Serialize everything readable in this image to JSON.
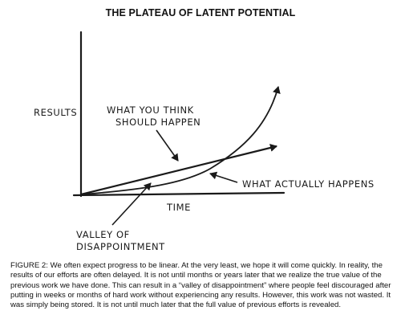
{
  "title": "THE PLATEAU OF LATENT POTENTIAL",
  "diagram": {
    "y_axis_label": "RESULTS",
    "x_axis_label": "TIME",
    "expected_label_line1": "WHAT YOU THINK",
    "expected_label_line2": "SHOULD HAPPEN",
    "actual_label": "WHAT ACTUALLY HAPPENS",
    "valley_label_line1": "VALLEY OF",
    "valley_label_line2": "DISAPPOINTMENT"
  },
  "caption": "FIGURE 2: We often expect progress to be linear. At the very least, we hope it will come quickly. In reality, the results of our efforts are often delayed. It is not until months or years later that we realize the true value of the previous work we have done. This can result in a “valley of disappointment” where people feel discouraged after putting in weeks or months of hard work without experiencing any results. However, this work was not wasted. It was simply being stored. It is not until much later that the full value of previous efforts is revealed."
}
